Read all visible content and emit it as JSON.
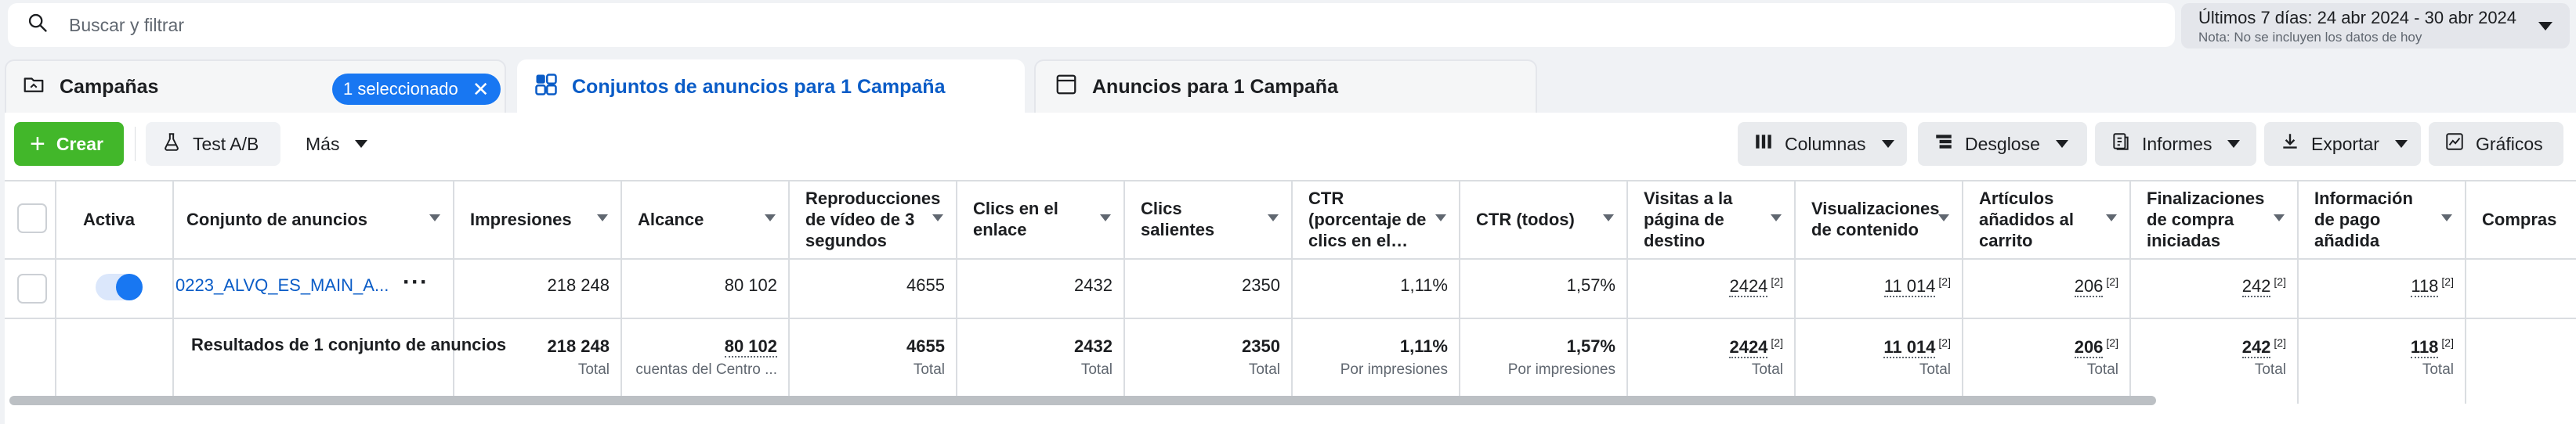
{
  "search": {
    "placeholder": "Buscar y filtrar"
  },
  "date_range": {
    "label": "Últimos 7 días: 24 abr 2024 - 30 abr 2024",
    "note": "Nota: No se incluyen los datos de hoy"
  },
  "tabs": {
    "campaigns": {
      "label": "Campañas",
      "selected_pill": "1 seleccionado"
    },
    "adsets": {
      "label": "Conjuntos de anuncios para 1 Campaña"
    },
    "ads": {
      "label": "Anuncios para 1 Campaña"
    }
  },
  "toolbar": {
    "create": "Crear",
    "ab_test": "Test A/B",
    "more": "Más",
    "columns": "Columnas",
    "breakdown": "Desglose",
    "reports": "Informes",
    "export": "Exportar",
    "charts": "Gráficos"
  },
  "table": {
    "headers": {
      "active": "Activa",
      "adset": "Conjunto de anuncios",
      "impressions": "Impresiones",
      "reach": "Alcance",
      "video_plays": "Reproducciones de vídeo de 3 segundos",
      "link_clicks": "Clics en el enlace",
      "outbound_clicks": "Clics salientes",
      "ctr_link": "CTR (porcentaje de clics en el…",
      "ctr_all": "CTR (todos)",
      "landing_page_views": "Visitas a la página de destino",
      "content_views": "Visualizaciones de contenido",
      "add_to_cart": "Artículos añadidos al carrito",
      "checkouts_initiated": "Finalizaciones de compra iniciadas",
      "payment_info_added": "Información de pago añadida",
      "purchases": "Compras"
    },
    "row": {
      "adset_name": "0223_ALVQ_ES_MAIN_A...",
      "impressions": "218 248",
      "reach": "80 102",
      "video_plays": "4655",
      "link_clicks": "2432",
      "outbound_clicks": "2350",
      "ctr_link": "1,11%",
      "ctr_all": "1,57%",
      "landing_page_views": "2424",
      "content_views": "11 014",
      "add_to_cart": "206",
      "checkouts_initiated": "242",
      "payment_info_added": "118",
      "footnote": "[2]"
    },
    "totals": {
      "label": "Resultados de 1 conjunto de anuncios",
      "impressions": "218 248",
      "reach": "80 102",
      "video_plays": "4655",
      "link_clicks": "2432",
      "outbound_clicks": "2350",
      "ctr_link": "1,11%",
      "ctr_all": "1,57%",
      "landing_page_views": "2424",
      "content_views": "11 014",
      "add_to_cart": "206",
      "checkouts_initiated": "242",
      "payment_info_added": "118",
      "sub_total": "Total",
      "sub_reach": "cuentas del Centro ...",
      "sub_per_impressions": "Por impresiones"
    }
  }
}
